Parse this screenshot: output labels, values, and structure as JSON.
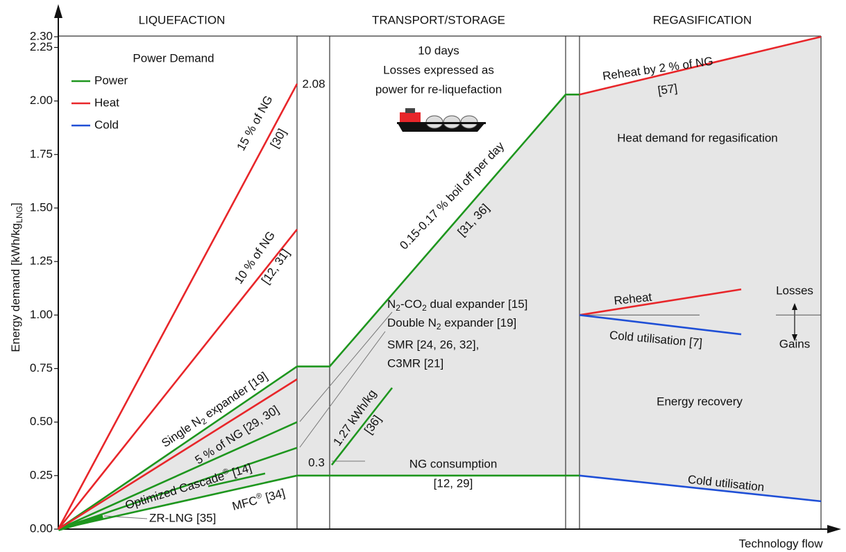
{
  "chart_data": {
    "type": "line",
    "sections": [
      "LIQUEFACTION",
      "TRANSPORT/STORAGE",
      "REGASIFICATION"
    ],
    "ylabel": [
      "Energy demand [kWh/kg",
      {
        "sub": "LNG"
      },
      "]"
    ],
    "xlabel": "Technology flow",
    "ylim": [
      0,
      2.3
    ],
    "yticks": [
      {
        "value": 0,
        "label": "0.00"
      },
      0.25,
      {
        "value": 0.5,
        "label": "0.50"
      },
      0.75,
      {
        "value": 1,
        "label": "1.00"
      },
      1.25,
      {
        "value": 1.5,
        "label": "1.50"
      },
      1.75,
      {
        "value": 2,
        "label": "2.00"
      },
      2.25,
      {
        "value": 2.3,
        "label": "2.30"
      }
    ],
    "series": [
      {
        "name": "Power",
        "color": "#1e961e",
        "lines": [
          [
            0,
            0.76,
            0.76,
            2.03,
            2.03
          ],
          [
            0,
            0.5
          ],
          [
            0,
            0.38
          ],
          [
            0,
            0.25,
            0.25
          ],
          [
            0.2,
            0.26
          ],
          [
            0,
            0.06
          ],
          [
            0.3,
            0.66
          ]
        ]
      },
      {
        "name": "Heat",
        "color": "#e8262a",
        "lines": [
          [
            0,
            2.08
          ],
          [
            0,
            1.4
          ],
          [
            0,
            0.7
          ],
          [
            2.03,
            2.3
          ],
          [
            1.0,
            1.12
          ]
        ]
      },
      {
        "name": "Cold",
        "color": "#1f4fd6",
        "lines": [
          [
            0.25,
            0.13
          ],
          [
            1.0,
            0.91
          ]
        ]
      }
    ],
    "annotations": [
      "Power Demand",
      "15 % of NG",
      "[30]",
      "10 % of NG",
      "[12, 31]",
      [
        "Single N",
        {
          "sub": "2"
        },
        " expander [19]"
      ],
      "5 % of NG [29, 30]",
      [
        "Optimized Cascade",
        {
          "sup": "®"
        },
        " [14]"
      ],
      [
        "MFC",
        {
          "sup": "®"
        },
        " [34]"
      ],
      "ZR-LNG [35]",
      "10 days",
      "Losses expressed as",
      "power for re-liquefaction",
      "0.15-0.17 % boil off per day",
      "[31, 36]",
      [
        "N",
        {
          "sub": "2"
        },
        "-CO",
        {
          "sub": "2"
        },
        " dual expander [15]"
      ],
      [
        "Double N",
        {
          "sub": "2"
        },
        " expander [19]"
      ],
      "SMR [24, 26, 32],",
      "C3MR [21]",
      "1.27 kWh/kg",
      "[36]",
      "NG consumption",
      "[12, 29]",
      "Reheat by 2 % of NG",
      "[57]",
      "Heat demand for regasification",
      "Reheat",
      "Cold utilisation [7]",
      "Losses",
      "Gains",
      "Energy recovery",
      "Cold utilisation"
    ]
  }
}
